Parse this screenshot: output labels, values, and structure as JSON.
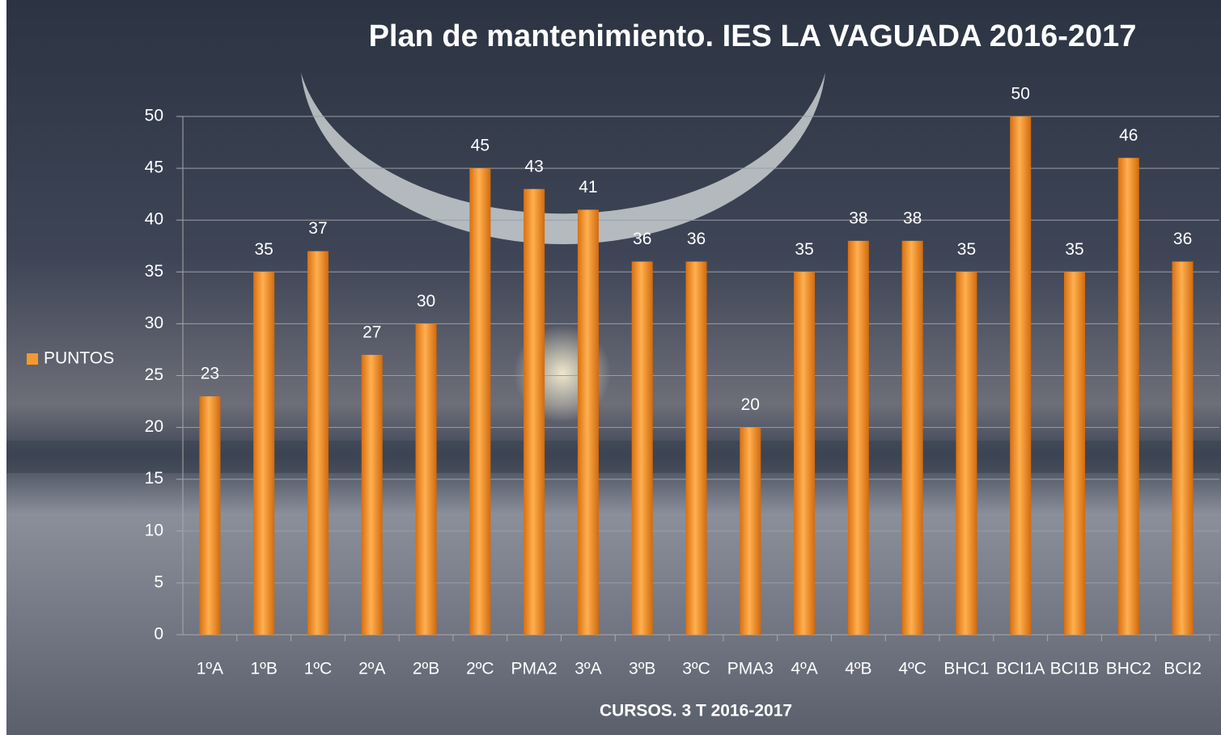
{
  "chart_data": {
    "type": "bar",
    "title": "Plan de mantenimiento.  IES LA VAGUADA  2016-2017",
    "x_label": "CURSOS.   3 T 2016-2017",
    "categories": [
      "1ºA",
      "1ºB",
      "1ºC",
      "2ºA",
      "2ºB",
      "2ºC",
      "PMA2",
      "3ºA",
      "3ºB",
      "3ºC",
      "PMA3",
      "4ºA",
      "4ºB",
      "4ºC",
      "BHC1",
      "BCI1A",
      "BCI1B",
      "BHC2",
      "BCI2"
    ],
    "series": [
      {
        "name": "PUNTOS",
        "color": "#f39a2e",
        "values": [
          23,
          35,
          37,
          27,
          30,
          45,
          43,
          41,
          36,
          36,
          20,
          35,
          38,
          38,
          35,
          50,
          35,
          46,
          36
        ]
      }
    ],
    "ylim": [
      0,
      50
    ],
    "yticks": [
      0,
      5,
      10,
      15,
      20,
      25,
      30,
      35,
      40,
      45,
      50
    ],
    "grid": true,
    "legend": "left"
  }
}
